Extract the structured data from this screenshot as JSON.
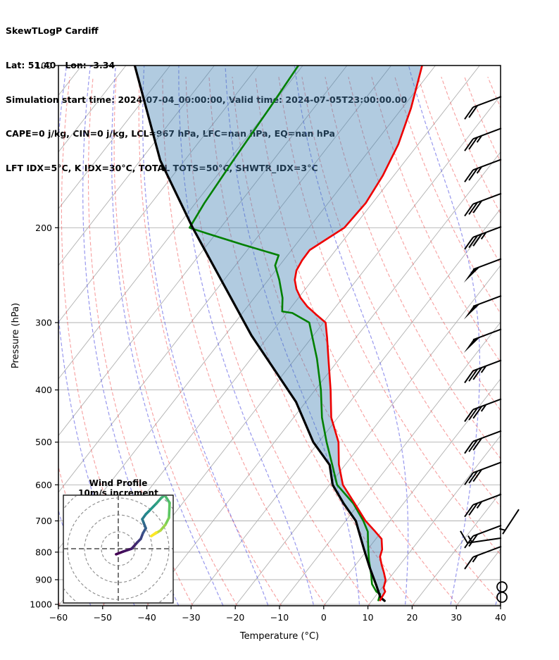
{
  "header": {
    "line1": "SkewTLogP Cardiff",
    "line2": "Lat: 51.40   Lon: -3.34",
    "line3": "Simulation start time: 2024-07-04_00:00:00, Valid time: 2024-07-05T23:00:00.00",
    "line4": "CAPE=0 j/kg, CIN=0 j/kg, LCL=967 hPa, LFC=nan hPa, EQ=nan hPa",
    "line5": "LFT IDX=5°C, K IDX=30°C, TOTAL TOTS=50°C, SHWTR_IDX=3°C"
  },
  "chart_data": {
    "type": "line",
    "variant": "skew-t-log-p",
    "title": "SkewTLogP Cardiff",
    "xlabel": "Temperature (°C)",
    "ylabel": "Pressure (hPa)",
    "xlim": [
      -60,
      40
    ],
    "ylim": [
      1050,
      100
    ],
    "x_ticks": [
      -60,
      -50,
      -40,
      -30,
      -20,
      -10,
      0,
      10,
      20,
      30,
      40
    ],
    "y_ticks": [
      100,
      200,
      300,
      400,
      500,
      600,
      700,
      800,
      900,
      1000
    ],
    "grid": {
      "isotherm_step": 10,
      "isotherm_color": "#b0b0b0",
      "dry_adiabat_step": 10,
      "dry_adiabat_color": "#f05050",
      "moist_adiabat_step": 10,
      "moist_adiabat_color": "#4444e0",
      "pressure_line_color": "#b0b0b0"
    },
    "series": [
      {
        "name": "temperature",
        "color": "#ee0000",
        "width": 2.6,
        "points": [
          [
            100,
            -73
          ],
          [
            120,
            -68
          ],
          [
            140,
            -64.5
          ],
          [
            160,
            -62.5
          ],
          [
            180,
            -61.5
          ],
          [
            200,
            -62
          ],
          [
            210,
            -64
          ],
          [
            220,
            -65.9
          ],
          [
            230,
            -65.8
          ],
          [
            240,
            -65.3
          ],
          [
            250,
            -64
          ],
          [
            260,
            -62
          ],
          [
            270,
            -59.5
          ],
          [
            280,
            -56.5
          ],
          [
            290,
            -53
          ],
          [
            300,
            -49.5
          ],
          [
            320,
            -46.5
          ],
          [
            350,
            -42.5
          ],
          [
            400,
            -36.5
          ],
          [
            450,
            -31.5
          ],
          [
            500,
            -25.5
          ],
          [
            550,
            -21.5
          ],
          [
            600,
            -17
          ],
          [
            650,
            -11
          ],
          [
            700,
            -5.5
          ],
          [
            733,
            -1.4
          ],
          [
            756,
            1.3
          ],
          [
            791,
            3.3
          ],
          [
            816,
            4.1
          ],
          [
            845,
            5.9
          ],
          [
            872,
            7.7
          ],
          [
            902,
            9.5
          ],
          [
            932,
            10.4
          ],
          [
            947,
            11.4
          ],
          [
            965,
            11.6
          ],
          [
            983,
            11.8
          ]
        ]
      },
      {
        "name": "dewpoint",
        "color": "#008000",
        "width": 2.6,
        "points": [
          [
            100,
            -101
          ],
          [
            120,
            -100
          ],
          [
            150,
            -99
          ],
          [
            180,
            -98
          ],
          [
            200,
            -97
          ],
          [
            205,
            -92
          ],
          [
            215,
            -82
          ],
          [
            225,
            -72
          ],
          [
            235,
            -71
          ],
          [
            250,
            -67.5
          ],
          [
            270,
            -63.6
          ],
          [
            286,
            -61.3
          ],
          [
            288,
            -58.7
          ],
          [
            300,
            -53.2
          ],
          [
            350,
            -45.1
          ],
          [
            400,
            -38.7
          ],
          [
            450,
            -33.6
          ],
          [
            500,
            -28.2
          ],
          [
            550,
            -23
          ],
          [
            600,
            -18.3
          ],
          [
            650,
            -11.3
          ],
          [
            700,
            -6
          ],
          [
            733,
            -3.1
          ],
          [
            779,
            -0.5
          ],
          [
            830,
            2.3
          ],
          [
            878,
            5.1
          ],
          [
            917,
            7.1
          ],
          [
            947,
            9.4
          ],
          [
            957,
            10.7
          ],
          [
            983,
            11.4
          ]
        ]
      },
      {
        "name": "parcel",
        "color": "#000000",
        "width": 3.2,
        "points": [
          [
            100,
            -138
          ],
          [
            150,
            -115.5
          ],
          [
            200,
            -96.3
          ],
          [
            317,
            -64
          ],
          [
            421,
            -42.2
          ],
          [
            500,
            -31.2
          ],
          [
            551,
            -23.5
          ],
          [
            600,
            -19.3
          ],
          [
            650,
            -13.5
          ],
          [
            700,
            -7.7
          ],
          [
            733,
            -5.1
          ],
          [
            791,
            -0.8
          ],
          [
            852,
            3.5
          ],
          [
            925,
            8.5
          ],
          [
            970,
            11.3
          ],
          [
            985,
            12.9
          ]
        ]
      }
    ],
    "shading": {
      "between": [
        "parcel",
        "temperature"
      ],
      "color": "#4682b4",
      "opacity": 0.42
    },
    "wind_barbs": [
      {
        "p": 117,
        "s": 20
      },
      {
        "p": 134,
        "s": 25
      },
      {
        "p": 153,
        "s": 25
      },
      {
        "p": 177,
        "s": 30
      },
      {
        "p": 204,
        "s": 35
      },
      {
        "p": 234,
        "s": 50
      },
      {
        "p": 274,
        "s": 50
      },
      {
        "p": 316,
        "s": 50
      },
      {
        "p": 361,
        "s": 35
      },
      {
        "p": 426,
        "s": 35
      },
      {
        "p": 488,
        "s": 30
      },
      {
        "p": 558,
        "s": 30
      },
      {
        "p": 640,
        "s": 25
      },
      {
        "p": 731,
        "s": 20
      },
      {
        "p": 800,
        "s": 15
      }
    ],
    "special_barbs": [
      {
        "p": 822,
        "s": 15,
        "kind": "easterly"
      },
      {
        "p": 848,
        "s": 5,
        "kind": "oblique"
      }
    ],
    "calm_circles": [
      {
        "p": 928
      },
      {
        "p": 970
      }
    ],
    "hodograph": {
      "title": "Wind Profile",
      "subtitle": "10m/s increment",
      "ring_step_ms": 10,
      "rings_ms": [
        10,
        20,
        30,
        40
      ],
      "trace_uv_ms": [
        [
          -1.3,
          -3.3
        ],
        [
          2.9,
          -1.7
        ],
        [
          7.9,
          0
        ],
        [
          11.3,
          3.8
        ],
        [
          13.3,
          5.8
        ],
        [
          14.6,
          9.2
        ],
        [
          16.3,
          12.1
        ],
        [
          15.0,
          15.4
        ],
        [
          14.2,
          17.5
        ],
        [
          16.3,
          20.4
        ],
        [
          18.8,
          22.9
        ],
        [
          22.5,
          26.7
        ],
        [
          25.4,
          30.0
        ],
        [
          27.5,
          31.7
        ],
        [
          30.4,
          27.1
        ],
        [
          30.0,
          18.3
        ],
        [
          27.9,
          14.2
        ],
        [
          25.0,
          10.8
        ],
        [
          21.7,
          8.8
        ],
        [
          19.6,
          7.5
        ],
        [
          22.5,
          9.6
        ]
      ],
      "colormap": [
        "#440154",
        "#3b528b",
        "#21918c",
        "#5ec962",
        "#fde725"
      ]
    }
  }
}
